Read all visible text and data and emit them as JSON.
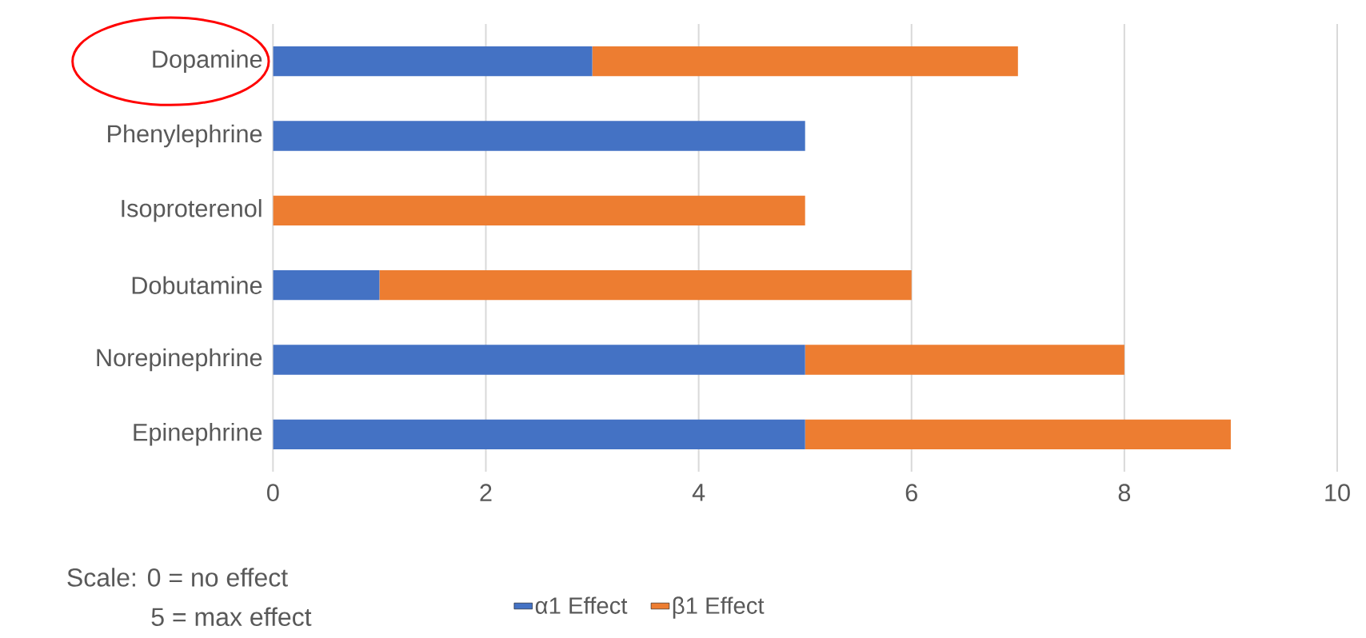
{
  "chart_data": {
    "type": "bar",
    "orientation": "horizontal",
    "stacked": true,
    "categories": [
      "Dopamine",
      "Phenylephrine",
      "Isoproterenol",
      "Dobutamine",
      "Norepinephrine",
      "Epinephrine"
    ],
    "series": [
      {
        "name": "α1 Effect",
        "color": "#4472c4",
        "values": [
          3,
          5,
          0,
          1,
          5,
          5
        ]
      },
      {
        "name": "β1 Effect",
        "color": "#ed7d31",
        "values": [
          4,
          0,
          5,
          5,
          3,
          4
        ]
      }
    ],
    "xlim": [
      0,
      10
    ],
    "xticks": [
      0,
      2,
      4,
      6,
      8,
      10
    ],
    "grid": "x",
    "legend": "bottom",
    "annotations": [
      "Scale: 0 = no effect",
      "5 = max effect"
    ]
  }
}
